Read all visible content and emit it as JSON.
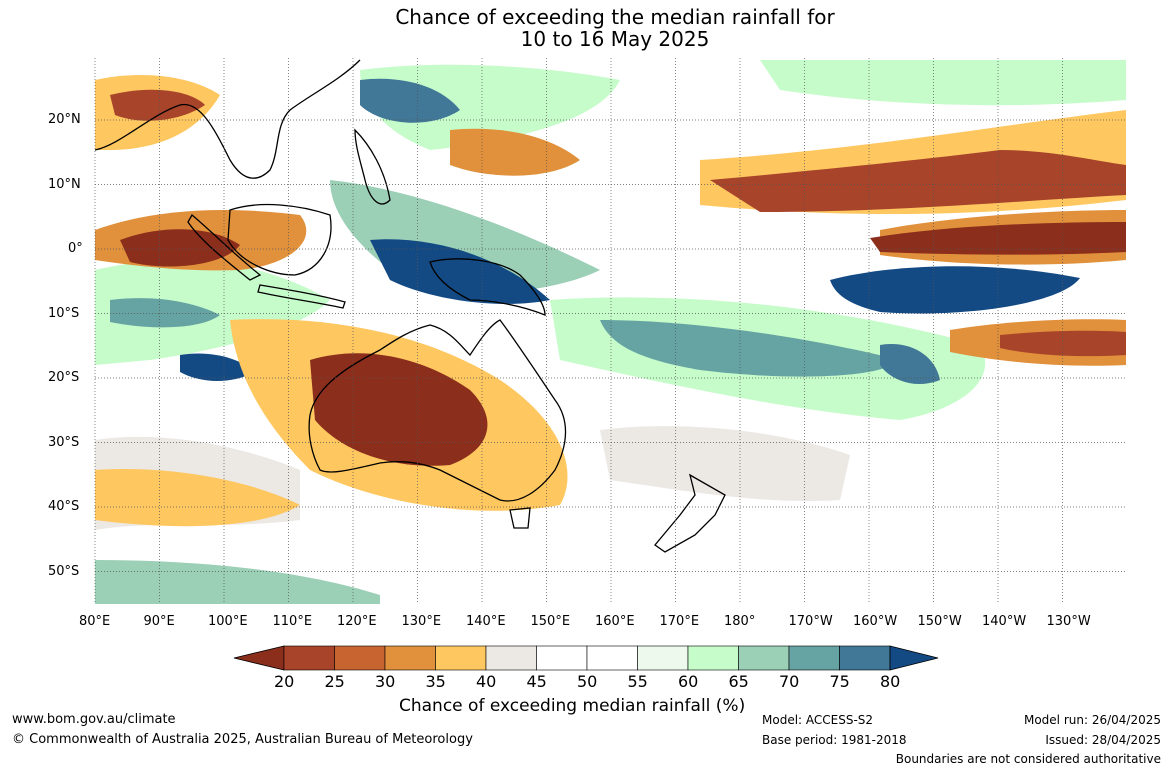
{
  "title": {
    "line1": "Chance of exceeding the median rainfall for",
    "line2": "10 to 16 May 2025"
  },
  "map": {
    "lon_labels": [
      "80°E",
      "90°E",
      "100°E",
      "110°E",
      "120°E",
      "130°E",
      "140°E",
      "150°E",
      "160°E",
      "170°E",
      "180°",
      "170°W",
      "160°W",
      "150°W",
      "140°W",
      "130°W"
    ],
    "lat_labels": [
      "20°N",
      "10°N",
      "0°",
      "10°S",
      "20°S",
      "30°S",
      "40°S",
      "50°S"
    ]
  },
  "colorbar": {
    "ticks": [
      "20",
      "25",
      "30",
      "35",
      "40",
      "45",
      "50",
      "55",
      "60",
      "65",
      "70",
      "75",
      "80"
    ],
    "colors": [
      "#8b2e1c",
      "#a8442a",
      "#c8642f",
      "#e1913c",
      "#fec760",
      "#ece8e4",
      "#ffffff",
      "#ffffff",
      "#ecf9ec",
      "#c6fbca",
      "#9bcfb6",
      "#66a4a3",
      "#417897",
      "#134a84"
    ],
    "label": "Chance of exceeding median rainfall (%)"
  },
  "footer": {
    "url": "www.bom.gov.au/climate",
    "copyright": "© Commonwealth of Australia 2025, Australian Bureau of Meteorology",
    "model": "Model: ACCESS-S2",
    "base_period": "Base period: 1981-2018",
    "model_run": "Model run: 26/04/2025",
    "issued": "Issued: 28/04/2025",
    "disclaimer": "Boundaries are not considered authoritative"
  }
}
